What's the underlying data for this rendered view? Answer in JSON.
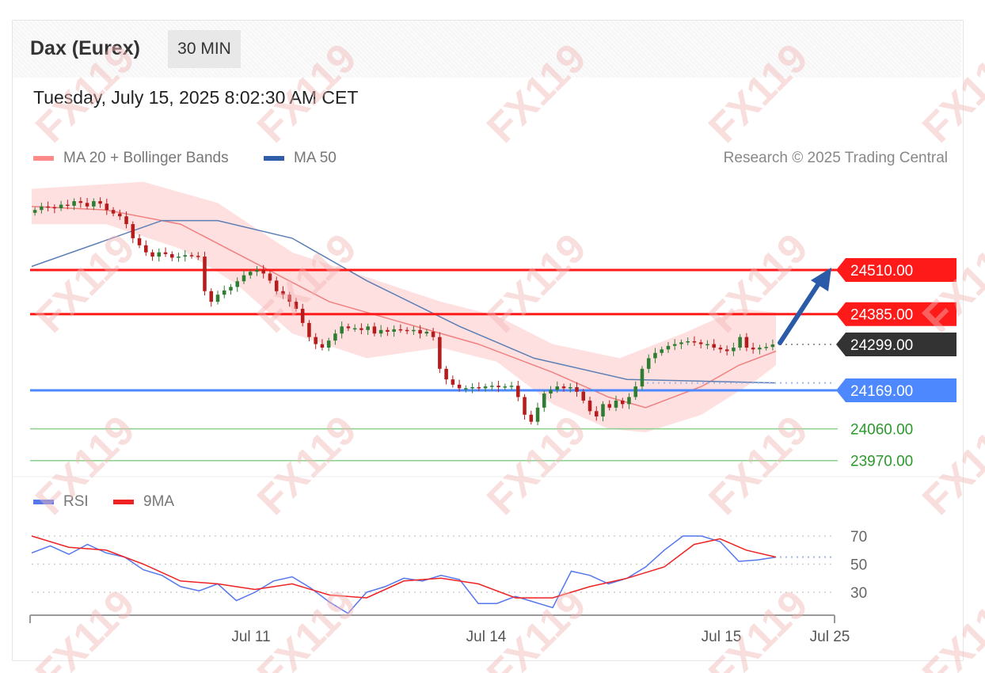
{
  "header": {
    "instrument": "Dax (Eurex)",
    "timeframe": "30 MIN",
    "datetime": "Tuesday, July 15, 2025 8:02:30 AM CET",
    "credit": "Research © 2025 Trading Central"
  },
  "watermark": "FX119",
  "colors": {
    "resistance": "#ff1a1a",
    "support": "#4d88ff",
    "minor_support": "#8ccf8c",
    "minor_support_text": "#2a9a2a",
    "current": "#333333",
    "ma50": "#5b7fb5",
    "bollinger": "#ffd6d6",
    "ma20": "#f08080",
    "candle_up": "#2e7d32",
    "candle_down": "#b71c1c",
    "arrow": "#2a5aa8",
    "rsi": "#5577ee",
    "rsi_ma": "#ee2222"
  },
  "chart_data": [
    {
      "type": "candlestick",
      "title": "Dax (Eurex)",
      "legend": [
        {
          "name": "MA 20 + Bollinger Bands",
          "color": "#ff8a8a"
        },
        {
          "name": "MA 50",
          "color": "#2e5ea8"
        }
      ],
      "x_ticks": [
        "Jul 11",
        "Jul 14",
        "Jul 15",
        "Jul 25"
      ],
      "price_levels": [
        {
          "label": "24510.00",
          "value": 24510,
          "kind": "resistance"
        },
        {
          "label": "24385.00",
          "value": 24385,
          "kind": "resistance"
        },
        {
          "label": "24299.00",
          "value": 24299,
          "kind": "current"
        },
        {
          "label": "24169.00",
          "value": 24169,
          "kind": "support"
        },
        {
          "label": "24060.00",
          "value": 24060,
          "kind": "minor-support"
        },
        {
          "label": "23970.00",
          "value": 23970,
          "kind": "minor-support"
        }
      ],
      "close": [
        24680,
        24690,
        24688,
        24685,
        24695,
        24692,
        24705,
        24700,
        24690,
        24705,
        24698,
        24680,
        24670,
        24662,
        24640,
        24600,
        24580,
        24560,
        24548,
        24560,
        24555,
        24545,
        24548,
        24552,
        24550,
        24548,
        24450,
        24420,
        24440,
        24452,
        24462,
        24478,
        24495,
        24505,
        24510,
        24500,
        24480,
        24450,
        24440,
        24420,
        24400,
        24360,
        24320,
        24300,
        24290,
        24310,
        24330,
        24350,
        24345,
        24345,
        24340,
        24350,
        24330,
        24340,
        24335,
        24342,
        24340,
        24338,
        24340,
        24330,
        24335,
        24320,
        24230,
        24200,
        24185,
        24175,
        24175,
        24178,
        24175,
        24180,
        24182,
        24178,
        24180,
        24182,
        24150,
        24100,
        24080,
        24120,
        24160,
        24170,
        24180,
        24175,
        24178,
        24165,
        24140,
        24110,
        24095,
        24130,
        24120,
        24140,
        24130,
        24150,
        24180,
        24230,
        24260,
        24275,
        24285,
        24295,
        24300,
        24305,
        24308,
        24305,
        24300,
        24300,
        24290,
        24285,
        24280,
        24290,
        24320,
        24290,
        24285,
        24290,
        24292,
        24299
      ],
      "ma50": [
        {
          "x": 0,
          "v": 24520
        },
        {
          "x": 35,
          "v": 24650
        },
        {
          "x": 50,
          "v": 24650
        },
        {
          "x": 70,
          "v": 24600
        },
        {
          "x": 90,
          "v": 24480
        },
        {
          "x": 115,
          "v": 24350
        },
        {
          "x": 135,
          "v": 24260
        },
        {
          "x": 160,
          "v": 24200
        },
        {
          "x": 180,
          "v": 24195
        },
        {
          "x": 200,
          "v": 24190
        }
      ],
      "ma20": [
        {
          "x": 0,
          "v": 24690
        },
        {
          "x": 20,
          "v": 24680
        },
        {
          "x": 40,
          "v": 24640
        },
        {
          "x": 60,
          "v": 24530
        },
        {
          "x": 80,
          "v": 24420
        },
        {
          "x": 100,
          "v": 24360
        },
        {
          "x": 120,
          "v": 24300
        },
        {
          "x": 140,
          "v": 24220
        },
        {
          "x": 155,
          "v": 24150
        },
        {
          "x": 165,
          "v": 24120
        },
        {
          "x": 180,
          "v": 24180
        },
        {
          "x": 190,
          "v": 24240
        },
        {
          "x": 200,
          "v": 24280
        }
      ],
      "bb_upper": [
        {
          "x": 0,
          "v": 24740
        },
        {
          "x": 30,
          "v": 24760
        },
        {
          "x": 50,
          "v": 24700
        },
        {
          "x": 70,
          "v": 24560
        },
        {
          "x": 90,
          "v": 24490
        },
        {
          "x": 110,
          "v": 24420
        },
        {
          "x": 125,
          "v": 24380
        },
        {
          "x": 140,
          "v": 24300
        },
        {
          "x": 158,
          "v": 24260
        },
        {
          "x": 175,
          "v": 24330
        },
        {
          "x": 190,
          "v": 24400
        },
        {
          "x": 200,
          "v": 24390
        }
      ],
      "bb_lower": [
        {
          "x": 0,
          "v": 24640
        },
        {
          "x": 20,
          "v": 24640
        },
        {
          "x": 40,
          "v": 24570
        },
        {
          "x": 55,
          "v": 24470
        },
        {
          "x": 70,
          "v": 24330
        },
        {
          "x": 90,
          "v": 24260
        },
        {
          "x": 110,
          "v": 24290
        },
        {
          "x": 125,
          "v": 24250
        },
        {
          "x": 140,
          "v": 24130
        },
        {
          "x": 155,
          "v": 24060
        },
        {
          "x": 165,
          "v": 24050
        },
        {
          "x": 180,
          "v": 24100
        },
        {
          "x": 195,
          "v": 24200
        },
        {
          "x": 200,
          "v": 24240
        }
      ]
    },
    {
      "type": "line",
      "legend": [
        {
          "name": "RSI",
          "color": "#5577ee"
        },
        {
          "name": "9MA",
          "color": "#ee2222"
        }
      ],
      "y_ticks": [
        70,
        50,
        30
      ],
      "ylim": [
        12,
        75
      ],
      "series": [
        {
          "name": "RSI",
          "points": [
            {
              "x": 0,
              "v": 58
            },
            {
              "x": 5,
              "v": 63
            },
            {
              "x": 10,
              "v": 57
            },
            {
              "x": 15,
              "v": 64
            },
            {
              "x": 20,
              "v": 58
            },
            {
              "x": 25,
              "v": 55
            },
            {
              "x": 30,
              "v": 46
            },
            {
              "x": 35,
              "v": 42
            },
            {
              "x": 40,
              "v": 34
            },
            {
              "x": 45,
              "v": 31
            },
            {
              "x": 50,
              "v": 36
            },
            {
              "x": 55,
              "v": 24
            },
            {
              "x": 60,
              "v": 30
            },
            {
              "x": 65,
              "v": 38
            },
            {
              "x": 70,
              "v": 41
            },
            {
              "x": 75,
              "v": 33
            },
            {
              "x": 80,
              "v": 23
            },
            {
              "x": 85,
              "v": 15
            },
            {
              "x": 90,
              "v": 30
            },
            {
              "x": 95,
              "v": 34
            },
            {
              "x": 100,
              "v": 40
            },
            {
              "x": 105,
              "v": 38
            },
            {
              "x": 110,
              "v": 42
            },
            {
              "x": 115,
              "v": 39
            },
            {
              "x": 120,
              "v": 22
            },
            {
              "x": 125,
              "v": 22
            },
            {
              "x": 130,
              "v": 27
            },
            {
              "x": 135,
              "v": 23
            },
            {
              "x": 140,
              "v": 19
            },
            {
              "x": 145,
              "v": 45
            },
            {
              "x": 150,
              "v": 42
            },
            {
              "x": 155,
              "v": 36
            },
            {
              "x": 160,
              "v": 40
            },
            {
              "x": 165,
              "v": 48
            },
            {
              "x": 170,
              "v": 60
            },
            {
              "x": 175,
              "v": 70
            },
            {
              "x": 180,
              "v": 70
            },
            {
              "x": 185,
              "v": 66
            },
            {
              "x": 190,
              "v": 52
            },
            {
              "x": 195,
              "v": 53
            },
            {
              "x": 200,
              "v": 55
            }
          ]
        },
        {
          "name": "9MA",
          "points": [
            {
              "x": 0,
              "v": 70
            },
            {
              "x": 10,
              "v": 62
            },
            {
              "x": 20,
              "v": 60
            },
            {
              "x": 30,
              "v": 50
            },
            {
              "x": 40,
              "v": 38
            },
            {
              "x": 50,
              "v": 36
            },
            {
              "x": 60,
              "v": 32
            },
            {
              "x": 70,
              "v": 36
            },
            {
              "x": 80,
              "v": 28
            },
            {
              "x": 90,
              "v": 26
            },
            {
              "x": 100,
              "v": 38
            },
            {
              "x": 110,
              "v": 40
            },
            {
              "x": 120,
              "v": 36
            },
            {
              "x": 130,
              "v": 26
            },
            {
              "x": 140,
              "v": 26
            },
            {
              "x": 150,
              "v": 34
            },
            {
              "x": 160,
              "v": 40
            },
            {
              "x": 170,
              "v": 48
            },
            {
              "x": 178,
              "v": 64
            },
            {
              "x": 185,
              "v": 68
            },
            {
              "x": 192,
              "v": 60
            },
            {
              "x": 200,
              "v": 55
            }
          ]
        }
      ]
    }
  ]
}
